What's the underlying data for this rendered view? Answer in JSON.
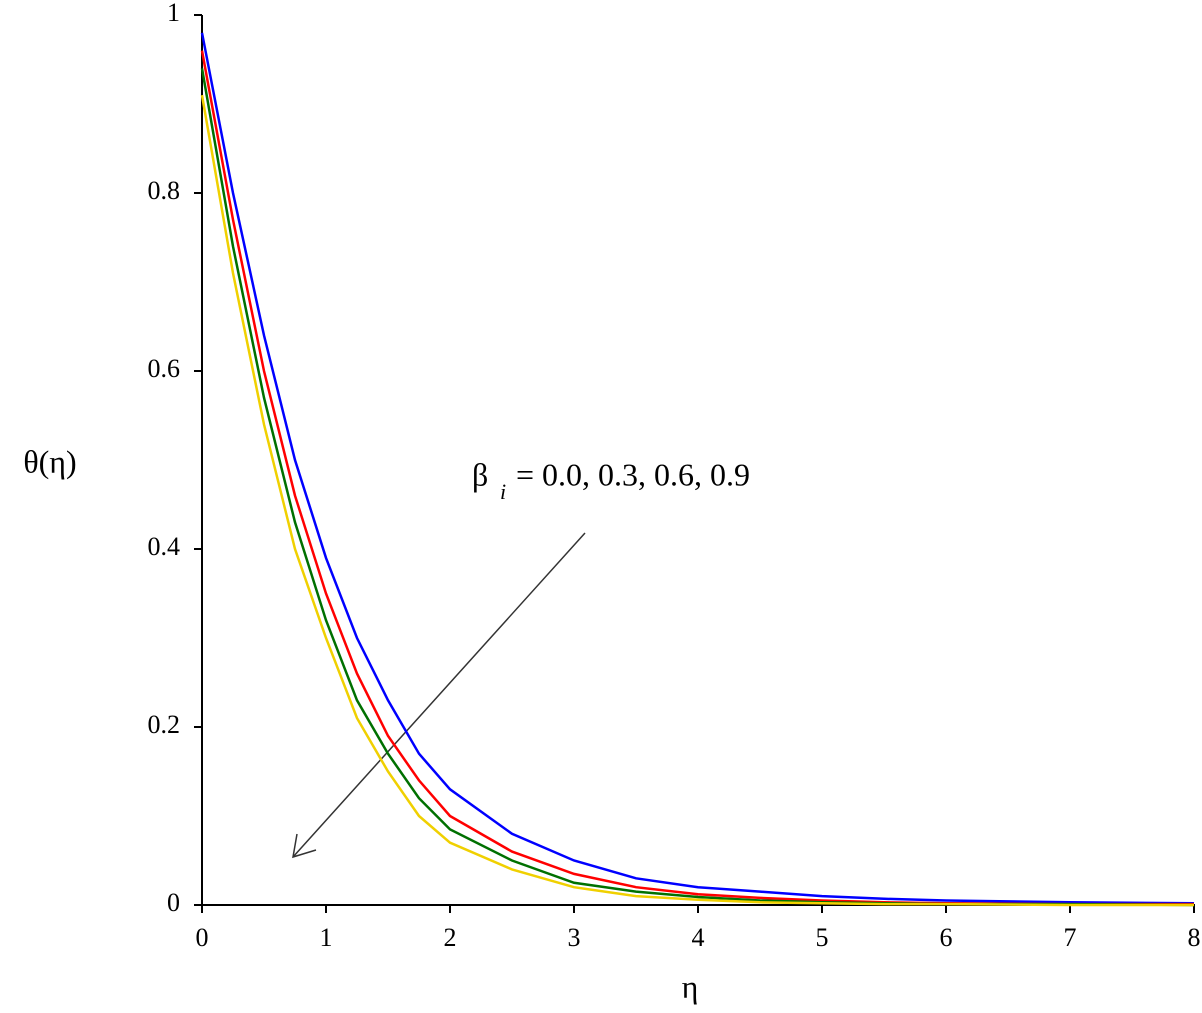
{
  "chart_data": {
    "type": "line",
    "x_label": "η",
    "y_label": "θ(η)",
    "annotation": {
      "symbol": "β",
      "subscript": "i",
      "text": "= 0.0, 0.3, 0.6, 0.9"
    },
    "x": [
      0,
      0.25,
      0.5,
      0.75,
      1,
      1.25,
      1.5,
      1.75,
      2,
      2.5,
      3,
      3.5,
      4,
      4.5,
      5,
      5.5,
      6,
      7,
      8
    ],
    "series": [
      {
        "color": "#0000ff",
        "values": [
          0.98,
          0.8,
          0.64,
          0.5,
          0.39,
          0.3,
          0.23,
          0.17,
          0.13,
          0.08,
          0.05,
          0.03,
          0.02,
          0.015,
          0.01,
          0.007,
          0.005,
          0.003,
          0.002
        ]
      },
      {
        "color": "#ff0000",
        "values": [
          0.96,
          0.77,
          0.6,
          0.46,
          0.35,
          0.26,
          0.19,
          0.14,
          0.1,
          0.06,
          0.035,
          0.02,
          0.012,
          0.008,
          0.005,
          0.003,
          0.002,
          0.001,
          0.001
        ]
      },
      {
        "color": "#007000",
        "values": [
          0.94,
          0.74,
          0.57,
          0.43,
          0.32,
          0.23,
          0.17,
          0.12,
          0.085,
          0.05,
          0.025,
          0.015,
          0.009,
          0.005,
          0.003,
          0.002,
          0.001,
          0.001,
          0
        ]
      },
      {
        "color": "#f0d000",
        "values": [
          0.91,
          0.71,
          0.54,
          0.4,
          0.3,
          0.21,
          0.15,
          0.1,
          0.07,
          0.04,
          0.02,
          0.01,
          0.006,
          0.003,
          0.002,
          0.001,
          0.001,
          0,
          0
        ]
      }
    ],
    "xlim": [
      0,
      8
    ],
    "ylim": [
      0,
      1
    ],
    "xticks": [
      0,
      1,
      2,
      3,
      4,
      5,
      6,
      7,
      8
    ],
    "yticks": [
      0,
      0.2,
      0.4,
      0.6,
      0.8,
      1
    ]
  }
}
